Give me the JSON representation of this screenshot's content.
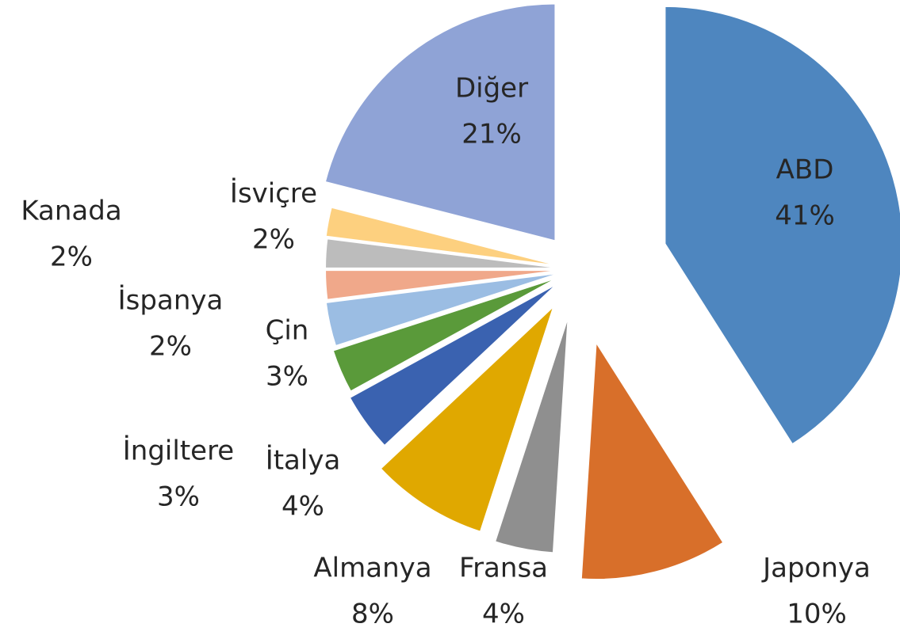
{
  "chart_data": {
    "type": "pie",
    "categories": [
      "ABD",
      "Japonya",
      "Fransa",
      "Almanya",
      "İtalya",
      "İngiltere",
      "Çin",
      "İspanya",
      "Kanada",
      "İsviçre",
      "Diğer"
    ],
    "values": [
      41,
      10,
      4,
      8,
      4,
      3,
      3,
      2,
      2,
      2,
      21
    ],
    "value_labels": [
      "41%",
      "10%",
      "4%",
      "8%",
      "4%",
      "3%",
      "3%",
      "2%",
      "2%",
      "2%",
      "21%"
    ],
    "colors": [
      "#4e86bf",
      "#d86f2a",
      "#8f8f8f",
      "#e0a800",
      "#3a62b0",
      "#5a9a3a",
      "#9bbde3",
      "#f0a88a",
      "#bcbcbc",
      "#fdd07f",
      "#8fa3d6"
    ]
  }
}
